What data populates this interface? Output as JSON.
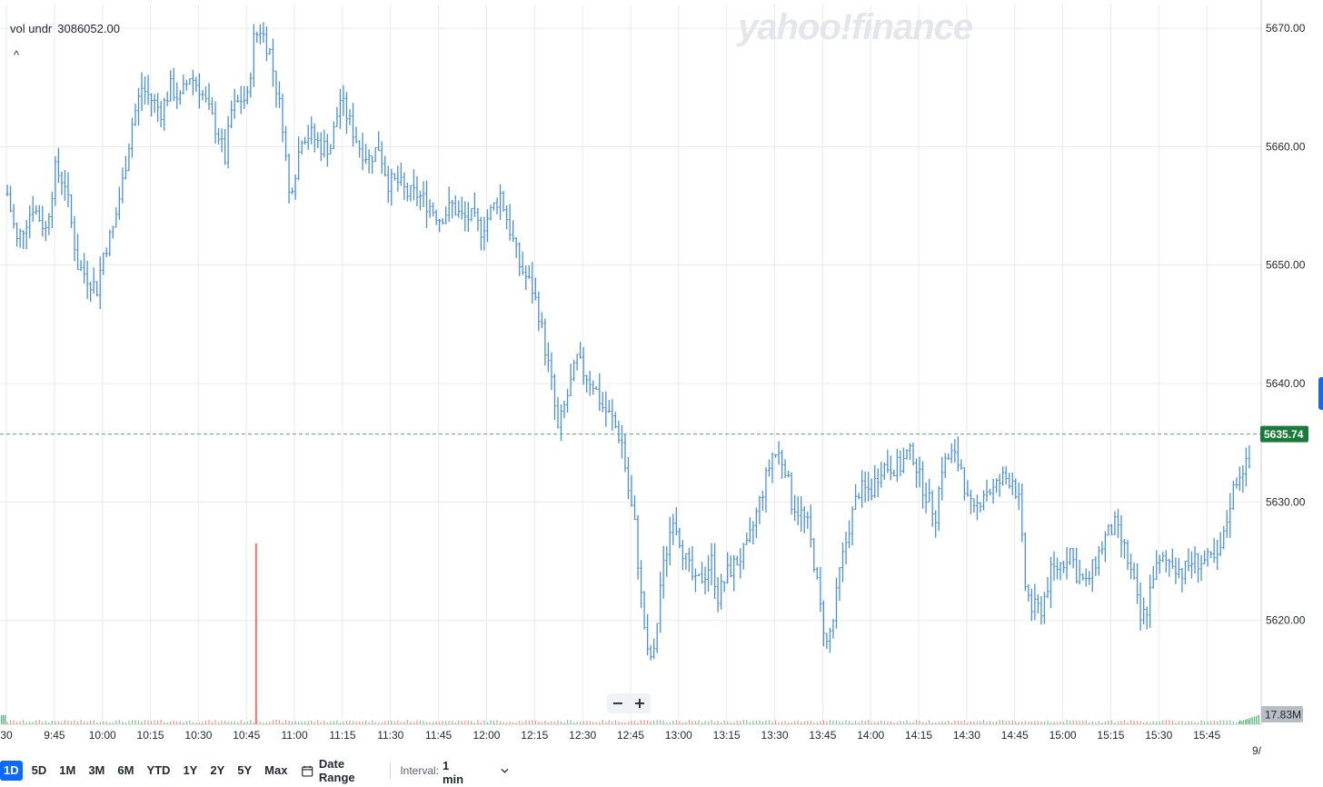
{
  "legend": {
    "label": "vol undr",
    "value": "3086052.00"
  },
  "brand": {
    "watermark": "yahoo!finance"
  },
  "zoom": {
    "minus_label": "−",
    "plus_label": "+"
  },
  "controls": {
    "ranges": [
      {
        "label": "1D",
        "active": true
      },
      {
        "label": "5D",
        "active": false
      },
      {
        "label": "1M",
        "active": false
      },
      {
        "label": "3M",
        "active": false
      },
      {
        "label": "6M",
        "active": false
      },
      {
        "label": "YTD",
        "active": false
      },
      {
        "label": "1Y",
        "active": false
      },
      {
        "label": "2Y",
        "active": false
      },
      {
        "label": "5Y",
        "active": false
      },
      {
        "label": "Max",
        "active": false
      }
    ],
    "date_range_label": "Date Range",
    "interval_label": "Interval:",
    "interval_value": "1 min"
  },
  "colors": {
    "price_bar": "#4a90d9",
    "volume_up": "#5cb57a",
    "volume_down": "#f2736b",
    "last_price_bg": "#1a7a3a",
    "volume_tag_bg": "#b7bdc3",
    "grid": "#e8eaed",
    "dashed": "#5aa57a"
  },
  "chart_data": {
    "type": "ohlc",
    "title": "",
    "interval": "1 min",
    "y_axis": {
      "ylim": [
        5612,
        5672
      ],
      "ticks": [
        5620.0,
        5630.0,
        5640.0,
        5650.0,
        5660.0,
        5670.0
      ],
      "tick_labels": [
        "5620.00",
        "5630.00",
        "5640.00",
        "5650.00",
        "5660.00",
        "5670.00"
      ]
    },
    "x_axis": {
      "tick_labels": [
        "9:30",
        "9:45",
        "10:00",
        "10:15",
        "10:30",
        "10:45",
        "11:00",
        "11:15",
        "11:30",
        "11:45",
        "12:00",
        "12:15",
        "12:30",
        "12:45",
        "13:00",
        "13:15",
        "13:30",
        "13:45",
        "14:00",
        "14:15",
        "14:30",
        "14:45",
        "15:00",
        "15:15",
        "15:30",
        "15:45",
        "9/"
      ],
      "first_label_visible": "30",
      "range": [
        "9:30",
        "16:00"
      ]
    },
    "last_price": {
      "value": 5635.74,
      "label": "5635.74"
    },
    "volume_tag": "17.83M",
    "grid": true,
    "price_path": [
      {
        "t": "9:30",
        "v": 5656
      },
      {
        "t": "9:33",
        "v": 5652
      },
      {
        "t": "9:38",
        "v": 5655
      },
      {
        "t": "9:42",
        "v": 5653
      },
      {
        "t": "9:45",
        "v": 5658
      },
      {
        "t": "9:48",
        "v": 5657
      },
      {
        "t": "9:52",
        "v": 5650
      },
      {
        "t": "9:55",
        "v": 5649
      },
      {
        "t": "9:58",
        "v": 5648
      },
      {
        "t": "10:00",
        "v": 5651
      },
      {
        "t": "10:03",
        "v": 5653
      },
      {
        "t": "10:06",
        "v": 5657
      },
      {
        "t": "10:09",
        "v": 5662
      },
      {
        "t": "10:12",
        "v": 5665
      },
      {
        "t": "10:15",
        "v": 5664
      },
      {
        "t": "10:18",
        "v": 5663
      },
      {
        "t": "10:21",
        "v": 5665
      },
      {
        "t": "10:24",
        "v": 5664
      },
      {
        "t": "10:27",
        "v": 5666
      },
      {
        "t": "10:30",
        "v": 5665
      },
      {
        "t": "10:33",
        "v": 5663
      },
      {
        "t": "10:36",
        "v": 5661
      },
      {
        "t": "10:38",
        "v": 5659
      },
      {
        "t": "10:40",
        "v": 5663
      },
      {
        "t": "10:43",
        "v": 5664
      },
      {
        "t": "10:45",
        "v": 5664
      },
      {
        "t": "10:47",
        "v": 5669
      },
      {
        "t": "10:49",
        "v": 5670
      },
      {
        "t": "10:52",
        "v": 5668
      },
      {
        "t": "10:54",
        "v": 5665
      },
      {
        "t": "10:56",
        "v": 5662
      },
      {
        "t": "10:58",
        "v": 5656
      },
      {
        "t": "11:00",
        "v": 5658
      },
      {
        "t": "11:02",
        "v": 5661
      },
      {
        "t": "11:05",
        "v": 5661
      },
      {
        "t": "11:08",
        "v": 5660
      },
      {
        "t": "11:11",
        "v": 5660
      },
      {
        "t": "11:14",
        "v": 5664
      },
      {
        "t": "11:17",
        "v": 5662
      },
      {
        "t": "11:20",
        "v": 5660
      },
      {
        "t": "11:23",
        "v": 5659
      },
      {
        "t": "11:26",
        "v": 5660
      },
      {
        "t": "11:29",
        "v": 5657
      },
      {
        "t": "11:32",
        "v": 5657
      },
      {
        "t": "11:35",
        "v": 5656
      },
      {
        "t": "11:38",
        "v": 5656
      },
      {
        "t": "11:42",
        "v": 5655
      },
      {
        "t": "11:45",
        "v": 5654
      },
      {
        "t": "11:49",
        "v": 5655
      },
      {
        "t": "11:52",
        "v": 5654
      },
      {
        "t": "11:55",
        "v": 5654
      },
      {
        "t": "11:58",
        "v": 5653
      },
      {
        "t": "12:00",
        "v": 5654
      },
      {
        "t": "12:02",
        "v": 5655
      },
      {
        "t": "12:04",
        "v": 5656
      },
      {
        "t": "12:06",
        "v": 5654
      },
      {
        "t": "12:08",
        "v": 5652
      },
      {
        "t": "12:10",
        "v": 5650
      },
      {
        "t": "12:12",
        "v": 5649
      },
      {
        "t": "12:14",
        "v": 5648
      },
      {
        "t": "12:16",
        "v": 5646
      },
      {
        "t": "12:18",
        "v": 5643
      },
      {
        "t": "12:20",
        "v": 5640
      },
      {
        "t": "12:22",
        "v": 5636
      },
      {
        "t": "12:24",
        "v": 5638
      },
      {
        "t": "12:26",
        "v": 5640
      },
      {
        "t": "12:28",
        "v": 5642
      },
      {
        "t": "12:30",
        "v": 5641
      },
      {
        "t": "12:33",
        "v": 5640
      },
      {
        "t": "12:36",
        "v": 5638
      },
      {
        "t": "12:39",
        "v": 5637
      },
      {
        "t": "12:42",
        "v": 5635
      },
      {
        "t": "12:44",
        "v": 5631
      },
      {
        "t": "12:46",
        "v": 5628
      },
      {
        "t": "12:48",
        "v": 5622
      },
      {
        "t": "12:50",
        "v": 5617
      },
      {
        "t": "12:52",
        "v": 5617
      },
      {
        "t": "12:54",
        "v": 5623
      },
      {
        "t": "12:56",
        "v": 5626
      },
      {
        "t": "12:58",
        "v": 5629
      },
      {
        "t": "13:00",
        "v": 5627
      },
      {
        "t": "13:02",
        "v": 5625
      },
      {
        "t": "13:05",
        "v": 5623
      },
      {
        "t": "13:08",
        "v": 5624
      },
      {
        "t": "13:10",
        "v": 5625
      },
      {
        "t": "13:12",
        "v": 5622
      },
      {
        "t": "13:15",
        "v": 5624
      },
      {
        "t": "13:18",
        "v": 5625
      },
      {
        "t": "13:21",
        "v": 5626
      },
      {
        "t": "13:24",
        "v": 5629
      },
      {
        "t": "13:27",
        "v": 5632
      },
      {
        "t": "13:29",
        "v": 5634
      },
      {
        "t": "13:31",
        "v": 5634
      },
      {
        "t": "13:33",
        "v": 5633
      },
      {
        "t": "13:35",
        "v": 5630
      },
      {
        "t": "13:38",
        "v": 5629
      },
      {
        "t": "13:40",
        "v": 5628
      },
      {
        "t": "13:42",
        "v": 5625
      },
      {
        "t": "13:44",
        "v": 5621
      },
      {
        "t": "13:46",
        "v": 5618
      },
      {
        "t": "13:48",
        "v": 5620
      },
      {
        "t": "13:50",
        "v": 5624
      },
      {
        "t": "13:53",
        "v": 5628
      },
      {
        "t": "13:56",
        "v": 5631
      },
      {
        "t": "14:00",
        "v": 5631
      },
      {
        "t": "14:03",
        "v": 5633
      },
      {
        "t": "14:06",
        "v": 5633
      },
      {
        "t": "14:09",
        "v": 5633
      },
      {
        "t": "14:11",
        "v": 5634
      },
      {
        "t": "14:13",
        "v": 5634
      },
      {
        "t": "14:15",
        "v": 5632
      },
      {
        "t": "14:18",
        "v": 5630
      },
      {
        "t": "14:20",
        "v": 5629
      },
      {
        "t": "14:22",
        "v": 5633
      },
      {
        "t": "14:25",
        "v": 5634
      },
      {
        "t": "14:28",
        "v": 5633
      },
      {
        "t": "14:30",
        "v": 5630
      },
      {
        "t": "14:32",
        "v": 5629
      },
      {
        "t": "14:35",
        "v": 5631
      },
      {
        "t": "14:38",
        "v": 5631
      },
      {
        "t": "14:41",
        "v": 5632
      },
      {
        "t": "14:44",
        "v": 5632
      },
      {
        "t": "14:46",
        "v": 5630
      },
      {
        "t": "14:48",
        "v": 5623
      },
      {
        "t": "14:50",
        "v": 5621
      },
      {
        "t": "14:53",
        "v": 5621
      },
      {
        "t": "14:56",
        "v": 5624
      },
      {
        "t": "15:00",
        "v": 5625
      },
      {
        "t": "15:02",
        "v": 5626
      },
      {
        "t": "15:04",
        "v": 5624
      },
      {
        "t": "15:07",
        "v": 5623
      },
      {
        "t": "15:10",
        "v": 5625
      },
      {
        "t": "15:13",
        "v": 5627
      },
      {
        "t": "15:16",
        "v": 5628
      },
      {
        "t": "15:19",
        "v": 5626
      },
      {
        "t": "15:22",
        "v": 5623
      },
      {
        "t": "15:24",
        "v": 5620
      },
      {
        "t": "15:26",
        "v": 5621
      },
      {
        "t": "15:28",
        "v": 5624
      },
      {
        "t": "15:31",
        "v": 5625
      },
      {
        "t": "15:34",
        "v": 5625
      },
      {
        "t": "15:37",
        "v": 5624
      },
      {
        "t": "15:40",
        "v": 5625
      },
      {
        "t": "15:43",
        "v": 5625
      },
      {
        "t": "15:46",
        "v": 5625
      },
      {
        "t": "15:48",
        "v": 5625
      },
      {
        "t": "15:50",
        "v": 5627
      },
      {
        "t": "15:52",
        "v": 5630
      },
      {
        "t": "15:54",
        "v": 5632
      },
      {
        "t": "15:56",
        "v": 5633
      },
      {
        "t": "15:58",
        "v": 5633
      },
      {
        "t": "15:59",
        "v": 5634
      }
    ],
    "volume_spike": {
      "t": "10:48",
      "note": "largest volume bar"
    }
  }
}
